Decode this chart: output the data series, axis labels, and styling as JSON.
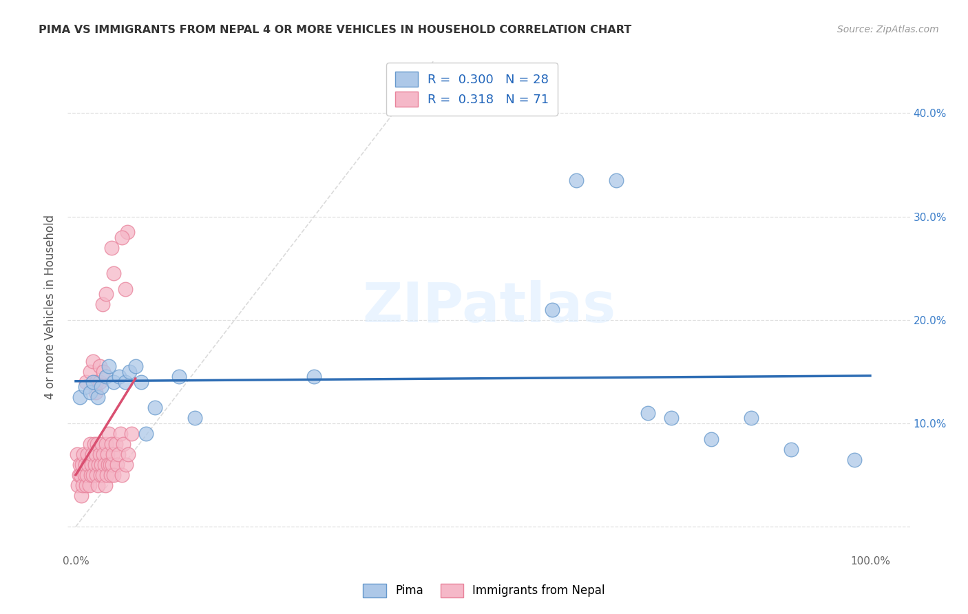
{
  "title": "PIMA VS IMMIGRANTS FROM NEPAL 4 OR MORE VEHICLES IN HOUSEHOLD CORRELATION CHART",
  "source": "Source: ZipAtlas.com",
  "ylabel": "4 or more Vehicles in Household",
  "xlim": [
    -0.01,
    1.05
  ],
  "ylim": [
    -0.025,
    0.45
  ],
  "legend_r_pima": "0.300",
  "legend_n_pima": "28",
  "legend_r_nepal": "0.318",
  "legend_n_nepal": "71",
  "pima_color": "#adc8e8",
  "nepal_color": "#f5b8c8",
  "pima_edge_color": "#6699cc",
  "nepal_edge_color": "#e8819a",
  "trend_pima_color": "#2e6db4",
  "trend_nepal_color": "#d94f70",
  "diagonal_color": "#cccccc",
  "background_color": "#ffffff",
  "grid_color": "#dddddd",
  "watermark": "ZIPatlas",
  "pima_x": [
    0.005,
    0.012,
    0.018,
    0.022,
    0.028,
    0.032,
    0.038,
    0.042,
    0.048,
    0.055,
    0.062,
    0.068,
    0.075,
    0.082,
    0.088,
    0.1,
    0.13,
    0.15,
    0.3,
    0.6,
    0.63,
    0.68,
    0.72,
    0.75,
    0.8,
    0.85,
    0.9,
    0.98
  ],
  "pima_y": [
    0.125,
    0.135,
    0.13,
    0.14,
    0.125,
    0.135,
    0.145,
    0.155,
    0.14,
    0.145,
    0.14,
    0.15,
    0.155,
    0.14,
    0.09,
    0.115,
    0.145,
    0.105,
    0.145,
    0.21,
    0.335,
    0.335,
    0.11,
    0.105,
    0.085,
    0.105,
    0.075,
    0.065
  ],
  "nepal_x": [
    0.002,
    0.003,
    0.004,
    0.005,
    0.006,
    0.007,
    0.008,
    0.009,
    0.01,
    0.011,
    0.012,
    0.013,
    0.014,
    0.015,
    0.016,
    0.017,
    0.018,
    0.019,
    0.02,
    0.021,
    0.022,
    0.023,
    0.024,
    0.025,
    0.026,
    0.027,
    0.028,
    0.029,
    0.03,
    0.031,
    0.032,
    0.033,
    0.034,
    0.035,
    0.036,
    0.037,
    0.038,
    0.039,
    0.04,
    0.041,
    0.042,
    0.043,
    0.044,
    0.045,
    0.046,
    0.047,
    0.048,
    0.05,
    0.052,
    0.054,
    0.056,
    0.058,
    0.06,
    0.063,
    0.066,
    0.07,
    0.013,
    0.018,
    0.022,
    0.026,
    0.03,
    0.034,
    0.038,
    0.045,
    0.025,
    0.03,
    0.035,
    0.065,
    0.058,
    0.062,
    0.048
  ],
  "nepal_y": [
    0.07,
    0.04,
    0.05,
    0.06,
    0.05,
    0.03,
    0.06,
    0.04,
    0.07,
    0.05,
    0.06,
    0.04,
    0.05,
    0.07,
    0.06,
    0.04,
    0.08,
    0.05,
    0.06,
    0.07,
    0.05,
    0.08,
    0.06,
    0.07,
    0.05,
    0.08,
    0.04,
    0.06,
    0.07,
    0.05,
    0.06,
    0.08,
    0.05,
    0.07,
    0.06,
    0.04,
    0.08,
    0.05,
    0.07,
    0.06,
    0.09,
    0.06,
    0.05,
    0.08,
    0.06,
    0.07,
    0.05,
    0.08,
    0.06,
    0.07,
    0.09,
    0.05,
    0.08,
    0.06,
    0.07,
    0.09,
    0.14,
    0.15,
    0.16,
    0.14,
    0.155,
    0.215,
    0.225,
    0.27,
    0.13,
    0.14,
    0.15,
    0.285,
    0.28,
    0.23,
    0.245
  ]
}
